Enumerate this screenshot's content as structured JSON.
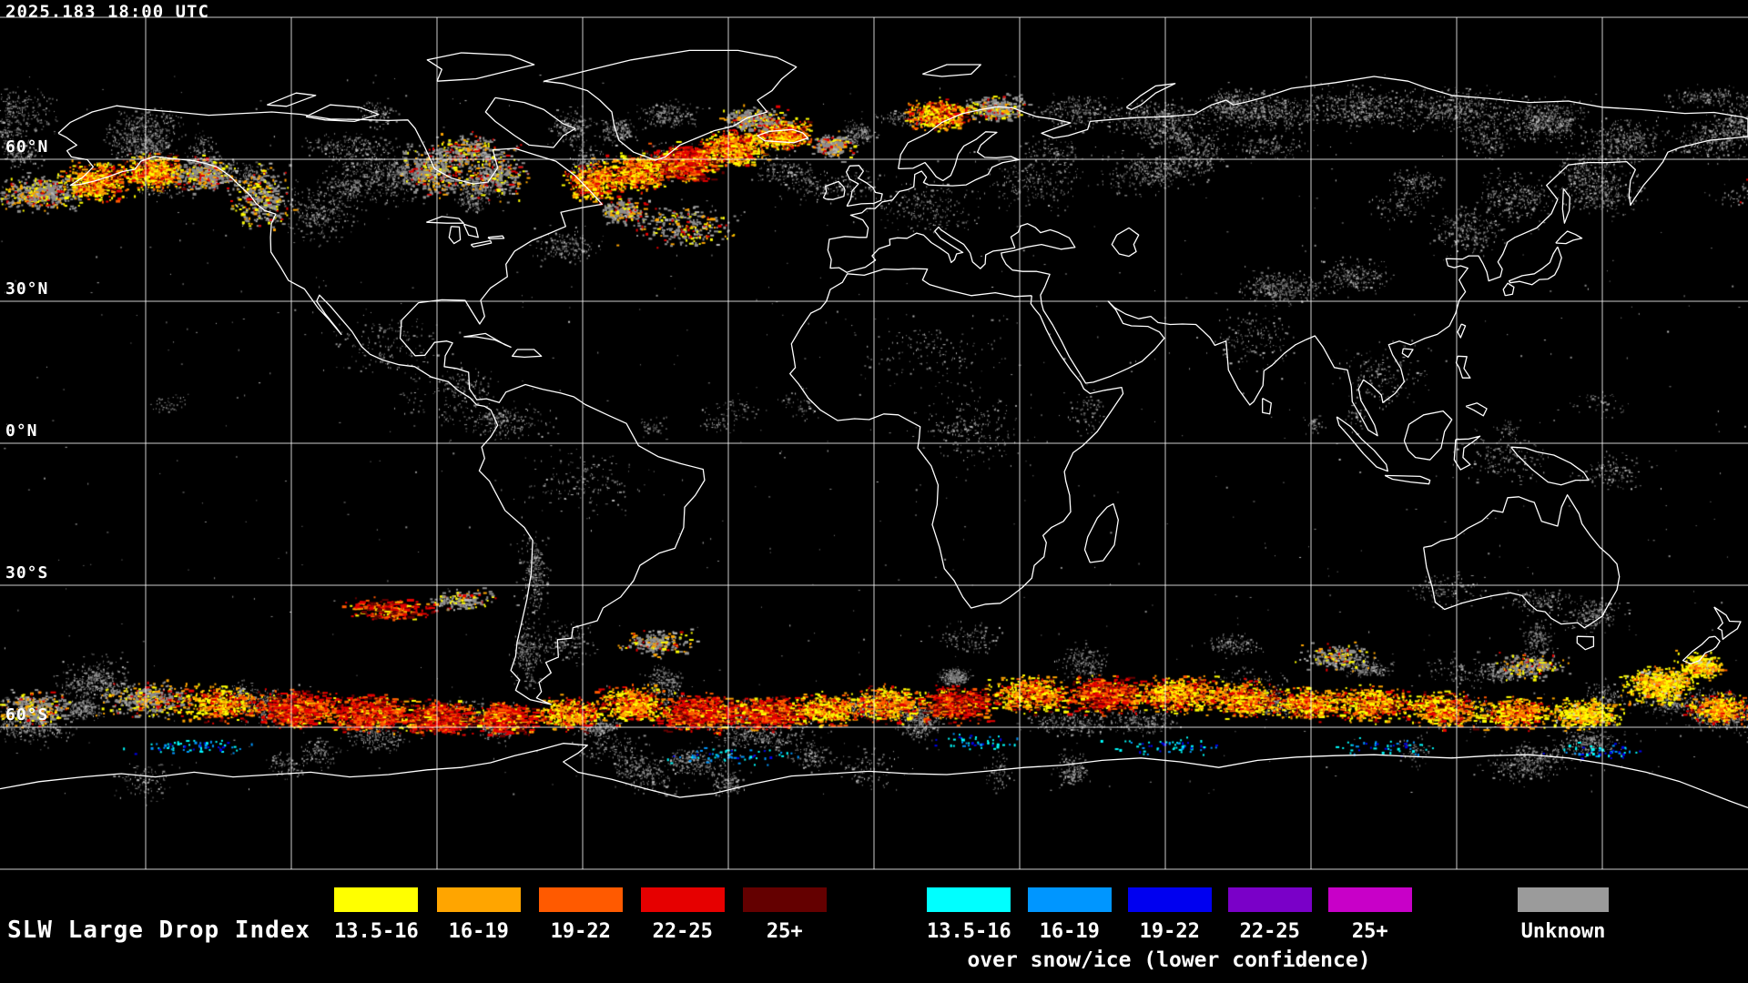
{
  "timestamp": "2025.183 18:00 UTC",
  "map": {
    "grid_labels": [
      "60°N",
      "30°N",
      "0°N",
      "30°S",
      "60°S"
    ]
  },
  "legend": {
    "title": "SLW Large Drop Index",
    "warm": {
      "labels": [
        "13.5-16",
        "16-19",
        "19-22",
        "22-25",
        "25+"
      ],
      "colors": [
        "#ffff00",
        "#ffa500",
        "#ff5a00",
        "#e60000",
        "#640000"
      ]
    },
    "cool": {
      "labels": [
        "13.5-16",
        "16-19",
        "19-22",
        "22-25",
        "25+"
      ],
      "colors": [
        "#00ffff",
        "#0096ff",
        "#0000f0",
        "#7a00c8",
        "#c800c8"
      ],
      "caption": "over snow/ice (lower confidence)"
    },
    "unknown": {
      "label": "Unknown",
      "color": "#9b9b9b"
    }
  }
}
